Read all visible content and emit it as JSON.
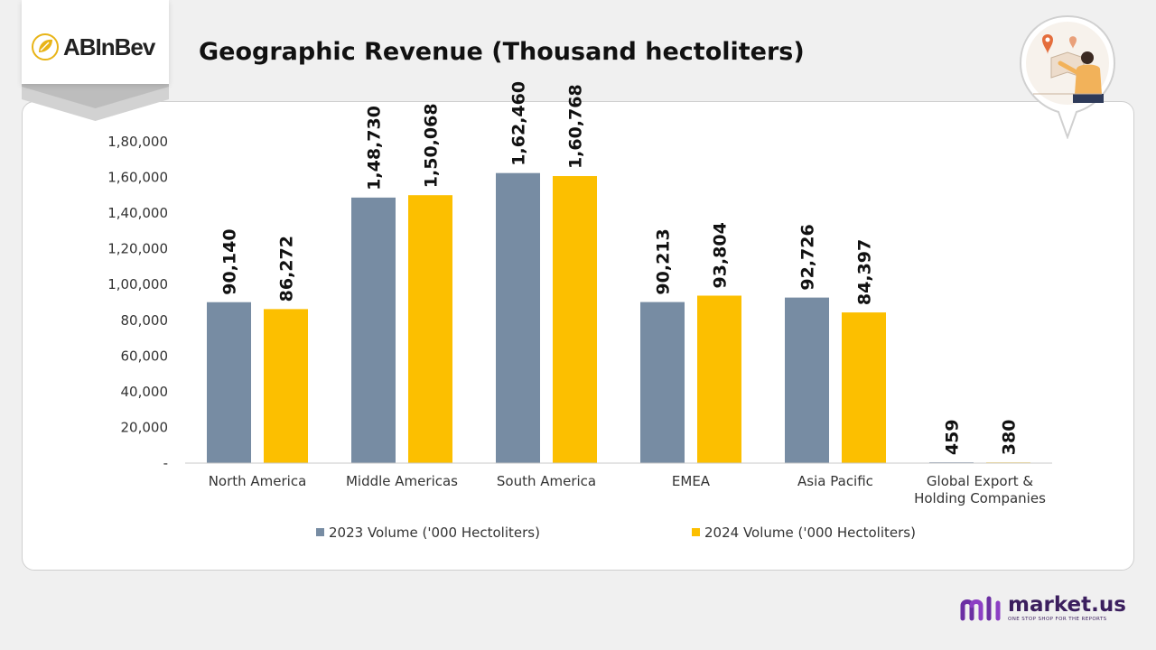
{
  "header": {
    "logo_text": "ABInBev",
    "title": "Geographic Revenue (Thousand hectoliters)"
  },
  "colors": {
    "series_2023": "#778ca3",
    "series_2024": "#fcbf00",
    "logo_gold": "#e8b417",
    "brand_purple": "#6b2fa3"
  },
  "chart_data": {
    "type": "bar",
    "title": "",
    "xlabel": "",
    "ylabel": "",
    "categories": [
      [
        "North America"
      ],
      [
        "Middle Americas"
      ],
      [
        "South America"
      ],
      [
        "EMEA"
      ],
      [
        "Asia Pacific"
      ],
      [
        "Global Export &",
        "Holding Companies"
      ]
    ],
    "series": [
      {
        "name": "2023 Volume ('000 Hectoliters)",
        "values": [
          90140,
          148730,
          162460,
          90213,
          92726,
          459
        ],
        "labels": [
          "90,140",
          "1,48,730",
          "1,62,460",
          "90,213",
          "92,726",
          "459"
        ]
      },
      {
        "name": "2024 Volume ('000 Hectoliters)",
        "values": [
          86272,
          150068,
          160768,
          93804,
          84397,
          380
        ],
        "labels": [
          "86,272",
          "1,50,068",
          "1,60,768",
          "93,804",
          "84,397",
          "380"
        ]
      }
    ],
    "ylim": [
      0,
      180000
    ],
    "yticks": [
      0,
      20000,
      40000,
      60000,
      80000,
      100000,
      120000,
      140000,
      160000,
      180000
    ],
    "ytick_labels": [
      "-",
      "20,000",
      "40,000",
      "60,000",
      "80,000",
      "1,00,000",
      "1,20,000",
      "1,40,000",
      "1,60,000",
      "1,80,000"
    ],
    "grid": false,
    "legend_position": "bottom"
  },
  "footer": {
    "brand_name": "market.us",
    "brand_tagline": "ONE STOP SHOP FOR THE REPORTS"
  },
  "icons": {
    "badge": "person-map-icon",
    "brand": "market-us-logo-icon",
    "logo": "abinbev-leaf-icon"
  }
}
